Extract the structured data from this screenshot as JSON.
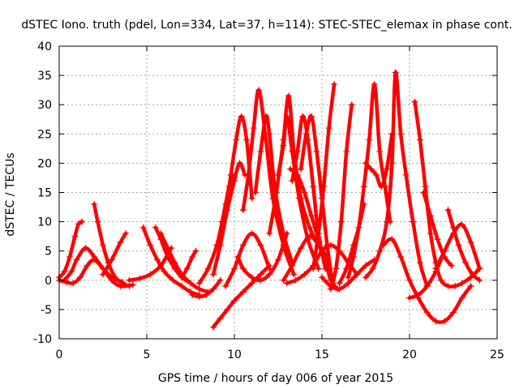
{
  "chart_data": {
    "type": "scatter",
    "title": "dSTEC Iono. truth (pdel, Lon=334, Lat=37, h=114): STEC-STEC_elemax in phase cont.",
    "xlabel": "GPS time / hours of day 006 of year 2015",
    "ylabel": "dSTEC  / TECUs",
    "xlim": [
      0,
      25
    ],
    "ylim": [
      -10,
      40
    ],
    "xticks": [
      0,
      5,
      10,
      15,
      20,
      25
    ],
    "yticks": [
      -10,
      -5,
      0,
      5,
      10,
      15,
      20,
      25,
      30,
      35,
      40
    ],
    "grid": true,
    "marker": "plus",
    "color": "#ff0000",
    "series": [
      {
        "x": [
          0.0,
          0.3,
          0.6,
          0.9,
          1.1,
          1.3
        ],
        "y": [
          0.5,
          1.5,
          4.0,
          7.5,
          9.6,
          10.0
        ]
      },
      {
        "x": [
          0.0,
          0.4,
          0.8,
          1.2,
          1.6,
          2.0,
          2.5,
          3.0,
          3.6
        ],
        "y": [
          0.0,
          -0.3,
          -0.5,
          0.5,
          2.5,
          3.5,
          2.0,
          0.5,
          -0.3
        ]
      },
      {
        "x": [
          0.3,
          0.7,
          1.0,
          1.5,
          2.0,
          2.5,
          3.0,
          3.5,
          4.2
        ],
        "y": [
          0.0,
          1.5,
          3.5,
          5.5,
          4.0,
          2.0,
          0.0,
          -1.0,
          -0.8
        ]
      },
      {
        "x": [
          2.0,
          2.2,
          2.5,
          2.8,
          3.2,
          3.6,
          4.0
        ],
        "y": [
          13.0,
          10.0,
          6.0,
          3.0,
          0.5,
          -0.5,
          -1.0
        ]
      },
      {
        "x": [
          2.5,
          3.0,
          3.5,
          3.8
        ],
        "y": [
          1.0,
          3.5,
          6.5,
          8.0
        ]
      },
      {
        "x": [
          4.8,
          5.2,
          5.6,
          6.0,
          6.5,
          7.0,
          7.5,
          8.0
        ],
        "y": [
          9.0,
          6.0,
          3.5,
          1.5,
          0.0,
          -1.0,
          -2.0,
          -2.5
        ]
      },
      {
        "x": [
          5.5,
          5.8,
          6.2,
          6.6,
          7.0,
          7.5
        ],
        "y": [
          9.0,
          7.0,
          4.0,
          2.0,
          0.5,
          -0.5
        ]
      },
      {
        "x": [
          5.8,
          6.2,
          6.6,
          7.0,
          7.5,
          8.0,
          8.5
        ],
        "y": [
          8.0,
          5.5,
          3.0,
          1.0,
          -0.5,
          -1.5,
          -2.0
        ]
      },
      {
        "x": [
          4.0,
          4.6,
          5.2,
          5.8,
          6.4
        ],
        "y": [
          0.0,
          0.3,
          1.0,
          2.5,
          5.5
        ]
      },
      {
        "x": [
          7.0,
          7.3,
          7.6,
          7.8
        ],
        "y": [
          0.5,
          2.0,
          4.0,
          5.0
        ]
      },
      {
        "x": [
          7.6,
          8.0,
          8.4,
          8.8,
          9.2
        ],
        "y": [
          -2.5,
          -2.8,
          -2.5,
          -1.5,
          0.0
        ]
      },
      {
        "x": [
          8.8,
          9.2,
          9.6,
          10.0,
          10.5,
          11.0,
          11.5,
          12.0
        ],
        "y": [
          -8.0,
          -6.5,
          -5.0,
          -3.5,
          -2.0,
          -0.5,
          1.0,
          2.5
        ]
      },
      {
        "x": [
          8.0,
          8.5,
          9.0,
          9.3,
          9.5,
          9.7,
          9.9
        ],
        "y": [
          -0.5,
          2.0,
          6.0,
          10.0,
          13.0,
          16.0,
          18.0
        ]
      },
      {
        "x": [
          9.5,
          9.8,
          10.1,
          10.4,
          10.7,
          11.0
        ],
        "y": [
          12.0,
          18.0,
          24.0,
          28.0,
          24.0,
          14.0
        ]
      },
      {
        "x": [
          8.8,
          9.2,
          9.6,
          10.0,
          10.3,
          10.6
        ],
        "y": [
          1.0,
          6.0,
          12.0,
          17.0,
          20.0,
          18.0
        ]
      },
      {
        "x": [
          10.5,
          10.8,
          11.1,
          11.4,
          11.8,
          12.2,
          12.8,
          13.4
        ],
        "y": [
          12.0,
          18.0,
          26.0,
          32.5,
          24.0,
          14.0,
          6.0,
          1.0
        ]
      },
      {
        "x": [
          11.2,
          11.5,
          11.8,
          12.0,
          12.3,
          12.8,
          13.3
        ],
        "y": [
          15.0,
          22.0,
          28.0,
          25.0,
          16.0,
          8.0,
          3.0
        ]
      },
      {
        "x": [
          9.5,
          10.0,
          10.5,
          11.0,
          11.5,
          12.0
        ],
        "y": [
          -1.0,
          2.0,
          6.0,
          8.0,
          6.0,
          2.0
        ]
      },
      {
        "x": [
          10.2,
          10.5,
          11.0,
          11.5,
          12.0,
          12.5,
          13.0
        ],
        "y": [
          4.0,
          2.0,
          0.5,
          0.0,
          1.0,
          3.5,
          8.0
        ]
      },
      {
        "x": [
          12.0,
          12.4,
          12.8,
          13.1,
          13.4,
          13.8,
          14.3,
          14.8,
          15.3
        ],
        "y": [
          8.0,
          15.0,
          24.0,
          31.5,
          22.0,
          14.0,
          9.0,
          6.0,
          4.0
        ]
      },
      {
        "x": [
          12.5,
          12.8,
          13.0,
          13.3,
          13.7,
          14.2,
          14.8
        ],
        "y": [
          18.0,
          23.0,
          28.0,
          22.0,
          14.0,
          7.0,
          2.0
        ]
      },
      {
        "x": [
          13.3,
          13.6,
          13.9,
          14.2,
          14.5,
          14.8,
          15.2
        ],
        "y": [
          17.0,
          22.0,
          28.0,
          24.0,
          16.0,
          8.0,
          2.0
        ]
      },
      {
        "x": [
          13.8,
          14.1,
          14.4,
          14.7,
          15.0,
          15.3,
          15.6,
          15.9
        ],
        "y": [
          19.0,
          25.0,
          28.0,
          22.0,
          14.0,
          6.0,
          0.0,
          -1.5
        ]
      },
      {
        "x": [
          13.2,
          13.6,
          14.0,
          14.4,
          14.8,
          15.2,
          15.5
        ],
        "y": [
          19.0,
          18.0,
          15.0,
          11.0,
          7.0,
          3.0,
          0.0
        ]
      },
      {
        "x": [
          14.5,
          14.8,
          15.1,
          15.4,
          15.7
        ],
        "y": [
          2.0,
          8.0,
          16.0,
          26.0,
          33.5
        ]
      },
      {
        "x": [
          12.8,
          13.3,
          13.8,
          14.3,
          14.8,
          15.3
        ],
        "y": [
          0.0,
          2.5,
          5.5,
          7.5,
          6.0,
          3.0
        ]
      },
      {
        "x": [
          13.0,
          13.5,
          14.0,
          14.5,
          15.0,
          15.5,
          16.0,
          16.5,
          17.0
        ],
        "y": [
          -0.5,
          0.0,
          1.0,
          2.5,
          5.0,
          6.0,
          5.0,
          3.0,
          1.0
        ]
      },
      {
        "x": [
          15.5,
          15.8,
          16.1,
          16.4,
          16.7
        ],
        "y": [
          -1.5,
          2.0,
          10.0,
          22.0,
          30.0
        ]
      },
      {
        "x": [
          15.0,
          15.5,
          16.0,
          16.5,
          17.0,
          17.5,
          18.0
        ],
        "y": [
          0.5,
          -1.0,
          -1.5,
          -0.5,
          1.0,
          2.5,
          3.5
        ]
      },
      {
        "x": [
          16.0,
          16.4,
          16.8,
          17.1,
          17.4
        ],
        "y": [
          -0.5,
          2.0,
          6.0,
          9.0,
          13.0
        ]
      },
      {
        "x": [
          16.5,
          16.8,
          17.1,
          17.4,
          17.7,
          18.0,
          18.3,
          18.6,
          18.9
        ],
        "y": [
          0.5,
          4.0,
          9.0,
          16.0,
          24.0,
          33.5,
          22.0,
          16.0,
          10.0
        ]
      },
      {
        "x": [
          17.5,
          17.8,
          18.1,
          18.4,
          18.7,
          19.0
        ],
        "y": [
          20.0,
          19.0,
          18.0,
          16.0,
          19.0,
          25.0
        ]
      },
      {
        "x": [
          17.5,
          17.9,
          18.3,
          18.7,
          19.0,
          19.2,
          19.5,
          19.8,
          20.2,
          20.6,
          21.0
        ],
        "y": [
          0.5,
          2.0,
          5.0,
          10.0,
          20.0,
          35.5,
          25.0,
          18.0,
          10.0,
          3.0,
          -1.0
        ]
      },
      {
        "x": [
          18.5,
          19.0,
          19.5,
          20.0,
          20.5,
          21.0,
          21.5,
          22.0,
          22.5,
          23.0,
          23.5
        ],
        "y": [
          6.0,
          7.0,
          4.0,
          0.0,
          -3.0,
          -5.5,
          -7.0,
          -7.0,
          -5.5,
          -3.0,
          -1.0
        ]
      },
      {
        "x": [
          20.3,
          20.6,
          20.9,
          21.2,
          21.5,
          21.8,
          22.2,
          22.6,
          23.0,
          23.5,
          24.0
        ],
        "y": [
          30.5,
          24.0,
          16.0,
          8.0,
          3.0,
          0.0,
          -1.0,
          -1.0,
          -0.5,
          0.5,
          2.0
        ]
      },
      {
        "x": [
          20.0,
          20.5,
          21.0,
          21.5,
          22.0
        ],
        "y": [
          -3.0,
          -2.5,
          -1.0,
          1.5,
          5.0
        ]
      },
      {
        "x": [
          21.5,
          22.0,
          22.5,
          23.0,
          23.5,
          24.0
        ],
        "y": [
          2.0,
          5.0,
          8.0,
          9.5,
          6.5,
          2.0
        ]
      },
      {
        "x": [
          22.2,
          22.5,
          22.8,
          23.2,
          23.6,
          24.0
        ],
        "y": [
          12.0,
          9.0,
          6.0,
          3.0,
          1.0,
          0.0
        ]
      },
      {
        "x": [
          20.8,
          21.2,
          21.6,
          22.0,
          22.4
        ],
        "y": [
          15.0,
          11.0,
          7.0,
          4.0,
          2.5
        ]
      }
    ]
  }
}
